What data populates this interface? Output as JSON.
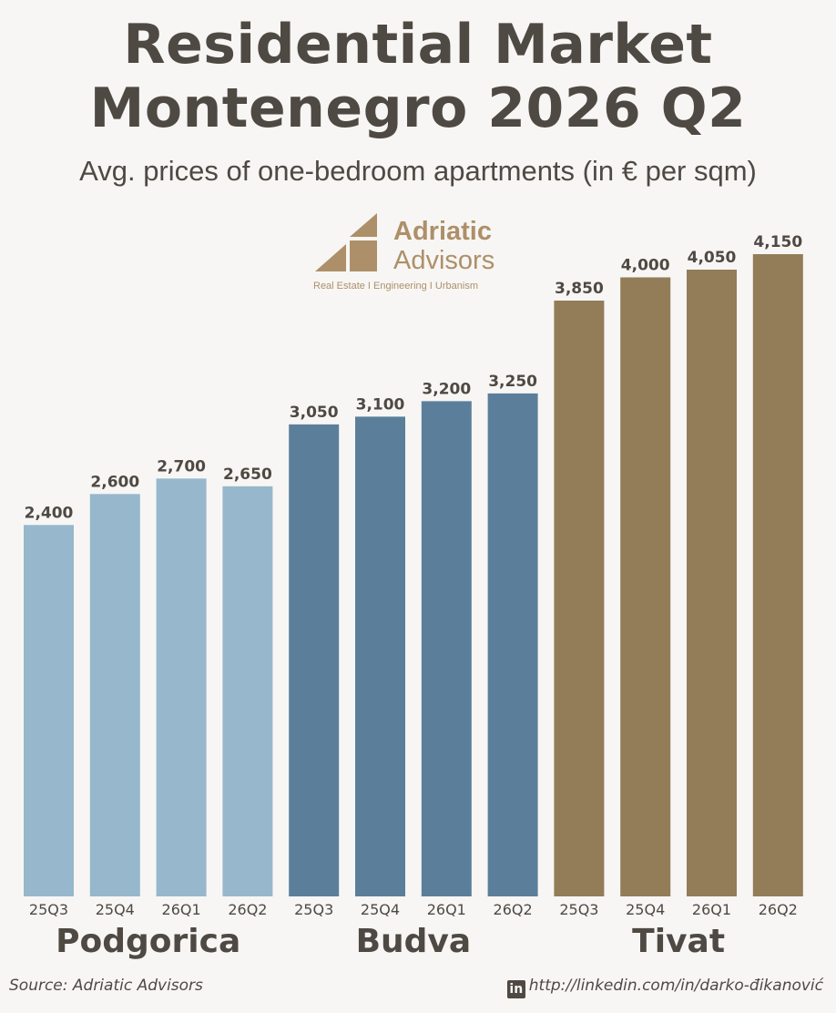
{
  "title_line1": "Residential Market",
  "title_line2": "Montenegro 2026 Q2",
  "subtitle": "Avg. prices of one-bedroom apartments (in € per sqm)",
  "logo": {
    "name_line1": "Adriatic",
    "name_line2": "Advisors",
    "tagline": "Real Estate I Engineering I Urbanism",
    "color": "#ad9069"
  },
  "chart_data": {
    "type": "bar",
    "title": "Residential Market Montenegro 2026 Q2",
    "subtitle": "Avg. prices of one-bedroom apartments (in € per sqm)",
    "ylim": [
      0,
      4150
    ],
    "grid": false,
    "groups": [
      {
        "name": "Podgorica",
        "color": "#97b7cc",
        "categories": [
          "25Q3",
          "25Q4",
          "26Q1",
          "26Q2"
        ],
        "values": [
          2400,
          2600,
          2700,
          2650
        ],
        "labels": [
          "2,400",
          "2,600",
          "2,700",
          "2,650"
        ]
      },
      {
        "name": "Budva",
        "color": "#5b7f9b",
        "categories": [
          "25Q3",
          "25Q4",
          "26Q1",
          "26Q2"
        ],
        "values": [
          3050,
          3100,
          3200,
          3250
        ],
        "labels": [
          "3,050",
          "3,100",
          "3,200",
          "3,250"
        ]
      },
      {
        "name": "Tivat",
        "color": "#937c58",
        "categories": [
          "25Q3",
          "25Q4",
          "26Q1",
          "26Q2"
        ],
        "values": [
          3850,
          4000,
          4050,
          4150
        ],
        "labels": [
          "3,850",
          "4,000",
          "4,050",
          "4,150"
        ]
      }
    ]
  },
  "footer": {
    "source": "Source: Adriatic Advisors",
    "linkedin_icon": "linkedin-icon",
    "linkedin_badge": "in",
    "linkedin_url": "http://linkedin.com/in/darko-đikanović"
  }
}
